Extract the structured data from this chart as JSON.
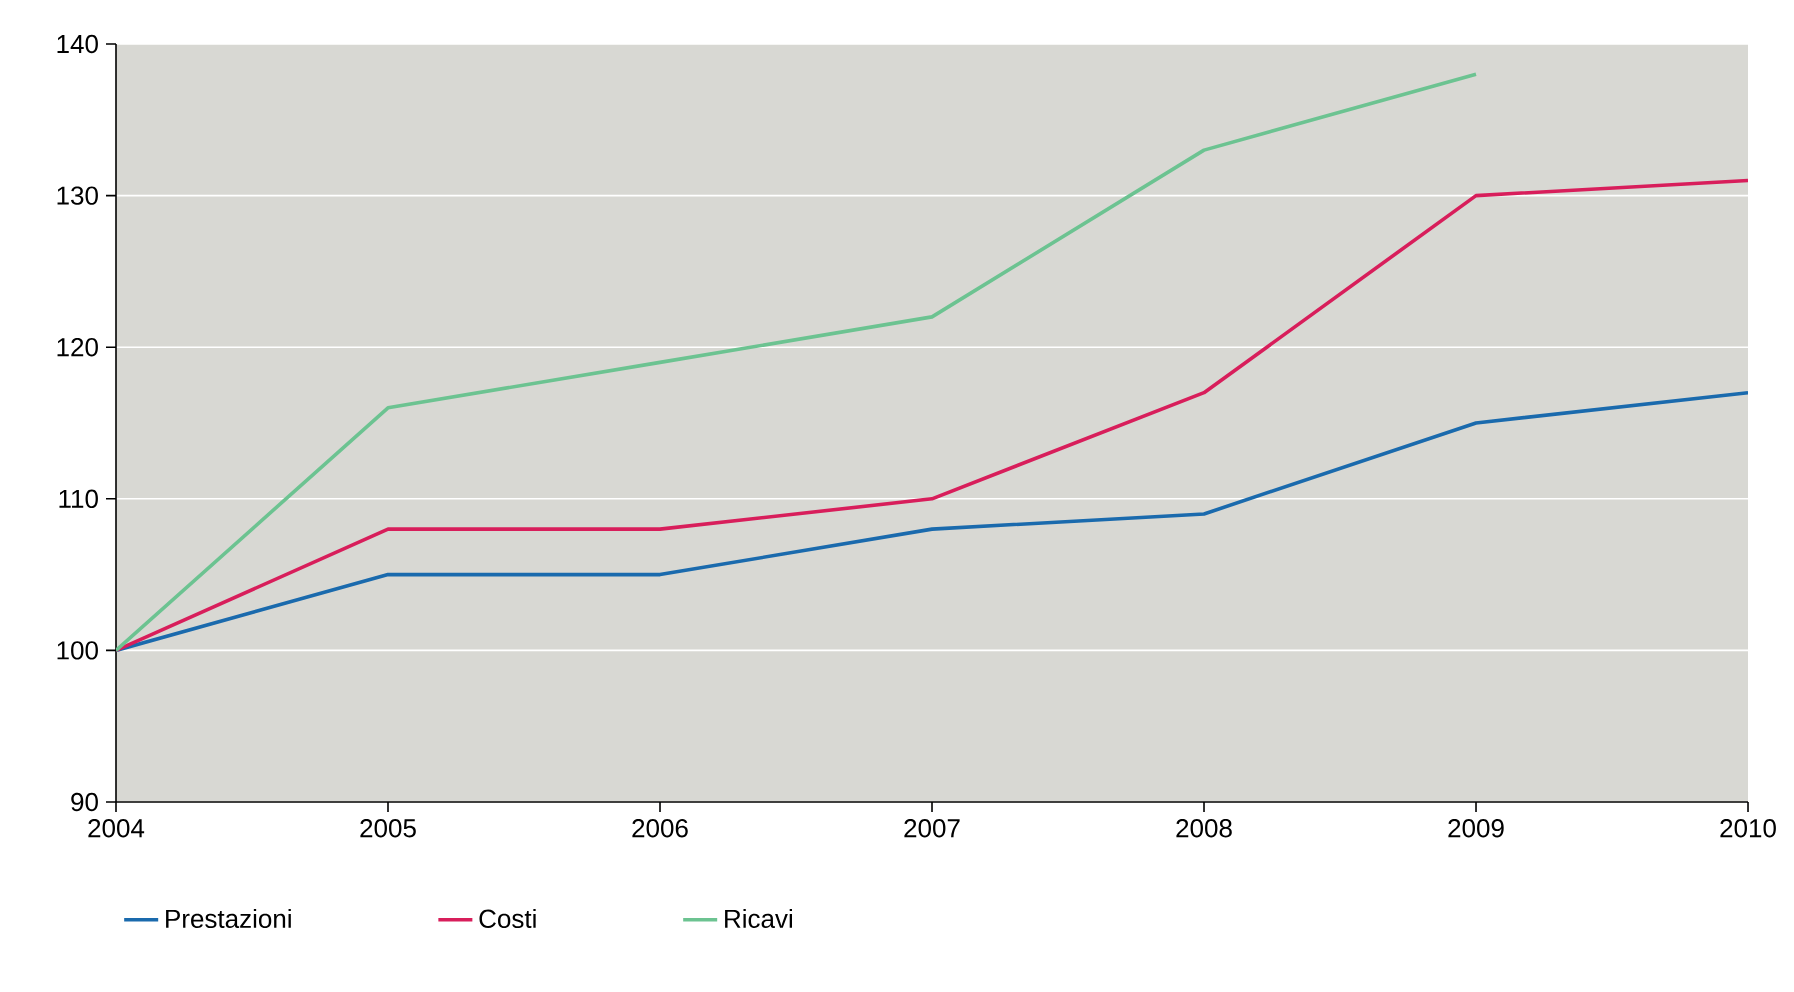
{
  "chart_data": {
    "type": "line",
    "categories": [
      "2004",
      "2005",
      "2006",
      "2007",
      "2008",
      "2009",
      "2010"
    ],
    "ylim": [
      90,
      140
    ],
    "yticks": [
      90,
      100,
      110,
      120,
      130,
      140
    ],
    "grid": "y",
    "legend": "bottom",
    "marker": "none",
    "line_style": "solid",
    "series": [
      {
        "name": "Prestazioni",
        "color": "#1a6aad",
        "values": [
          100,
          105,
          105,
          108,
          109,
          115,
          117
        ]
      },
      {
        "name": "Costi",
        "color": "#d81e5b",
        "values": [
          100,
          108,
          108,
          110,
          117,
          130,
          131
        ]
      },
      {
        "name": "Ricavi",
        "color": "#6cc391",
        "values": [
          100,
          116,
          119,
          122,
          133,
          138,
          null
        ]
      }
    ]
  }
}
